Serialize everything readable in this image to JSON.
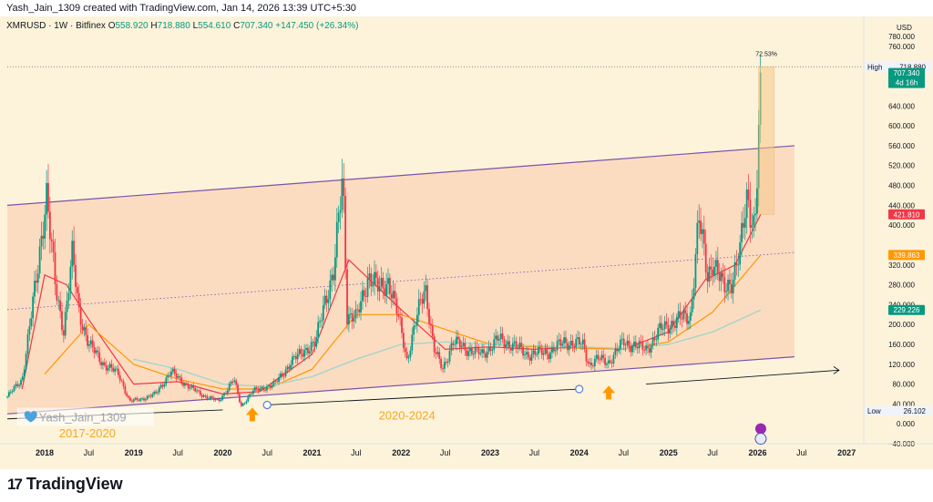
{
  "header": {
    "credit": "Yash_Jain_1309 created with TradingView.com, Jan 14, 2026 13:39 UTC+5:30"
  },
  "legend": {
    "symbol": "XMRUSD · 1W · Bitfinex",
    "open_label": "O",
    "open": "558.920",
    "high_label": "H",
    "high": "718.880",
    "low_label": "L",
    "low": "554.610",
    "close_label": "C",
    "close": "707.340",
    "change": "+147.450 (+26.34%)"
  },
  "footer": {
    "brand": "TradingView",
    "logo_mark": "17"
  },
  "chart_data": {
    "type": "candlestick",
    "currency": "USD",
    "y_range": [
      -40,
      780
    ],
    "x_range": [
      "2017-08-01",
      "2027-03-01"
    ],
    "y_ticks": [
      "780.000",
      "760.000",
      "640.000",
      "600.000",
      "560.000",
      "520.000",
      "480.000",
      "440.000",
      "400.000",
      "320.000",
      "280.000",
      "240.000",
      "200.000",
      "160.000",
      "120.000",
      "80.000",
      "40.000",
      "0.000",
      "−40.000"
    ],
    "y_tick_values": [
      780,
      760,
      640,
      600,
      560,
      520,
      480,
      440,
      400,
      320,
      280,
      240,
      200,
      160,
      120,
      80,
      40,
      0,
      -40
    ],
    "x_ticks": [
      {
        "label": "2018",
        "date": "2018-01-01",
        "bold": true
      },
      {
        "label": "Jul",
        "date": "2018-07-01"
      },
      {
        "label": "2019",
        "date": "2019-01-01",
        "bold": true
      },
      {
        "label": "Jul",
        "date": "2019-07-01"
      },
      {
        "label": "2020",
        "date": "2020-01-01",
        "bold": true
      },
      {
        "label": "Jul",
        "date": "2020-07-01"
      },
      {
        "label": "2021",
        "date": "2021-01-01",
        "bold": true
      },
      {
        "label": "Jul",
        "date": "2021-07-01"
      },
      {
        "label": "2022",
        "date": "2022-01-01",
        "bold": true
      },
      {
        "label": "Jul",
        "date": "2022-07-01"
      },
      {
        "label": "2023",
        "date": "2023-01-01",
        "bold": true
      },
      {
        "label": "Jul",
        "date": "2023-07-01"
      },
      {
        "label": "2024",
        "date": "2024-01-01",
        "bold": true
      },
      {
        "label": "Jul",
        "date": "2024-07-01"
      },
      {
        "label": "2025",
        "date": "2025-01-01",
        "bold": true
      },
      {
        "label": "Jul",
        "date": "2025-07-01"
      },
      {
        "label": "2026",
        "date": "2026-01-01",
        "bold": true
      },
      {
        "label": "Jul",
        "date": "2026-07-01"
      },
      {
        "label": "2027",
        "date": "2027-01-01",
        "bold": true
      }
    ],
    "price_path": [
      [
        "2017-08-01",
        55
      ],
      [
        "2017-10-01",
        90
      ],
      [
        "2017-12-01",
        300
      ],
      [
        "2018-01-08",
        470
      ],
      [
        "2018-01-20",
        400
      ],
      [
        "2018-02-15",
        270
      ],
      [
        "2018-03-20",
        190
      ],
      [
        "2018-04-25",
        340
      ],
      [
        "2018-05-20",
        230
      ],
      [
        "2018-07-01",
        160
      ],
      [
        "2018-09-01",
        120
      ],
      [
        "2018-11-01",
        100
      ],
      [
        "2018-12-15",
        45
      ],
      [
        "2019-02-01",
        50
      ],
      [
        "2019-04-01",
        60
      ],
      [
        "2019-06-01",
        105
      ],
      [
        "2019-08-01",
        80
      ],
      [
        "2019-10-01",
        60
      ],
      [
        "2019-12-15",
        45
      ],
      [
        "2020-02-15",
        90
      ],
      [
        "2020-03-16",
        35
      ],
      [
        "2020-05-01",
        65
      ],
      [
        "2020-08-01",
        80
      ],
      [
        "2020-10-01",
        120
      ],
      [
        "2020-12-01",
        150
      ],
      [
        "2021-01-15",
        160
      ],
      [
        "2021-02-20",
        250
      ],
      [
        "2021-04-01",
        300
      ],
      [
        "2021-05-07",
        510
      ],
      [
        "2021-05-25",
        220
      ],
      [
        "2021-07-01",
        210
      ],
      [
        "2021-08-20",
        300
      ],
      [
        "2021-10-01",
        270
      ],
      [
        "2021-11-10",
        290
      ],
      [
        "2022-01-01",
        190
      ],
      [
        "2022-01-25",
        130
      ],
      [
        "2022-03-20",
        240
      ],
      [
        "2022-04-10",
        280
      ],
      [
        "2022-05-15",
        150
      ],
      [
        "2022-06-20",
        110
      ],
      [
        "2022-08-01",
        165
      ],
      [
        "2022-10-01",
        150
      ],
      [
        "2022-12-01",
        140
      ],
      [
        "2023-02-01",
        170
      ],
      [
        "2023-04-01",
        160
      ],
      [
        "2023-06-01",
        140
      ],
      [
        "2023-09-01",
        145
      ],
      [
        "2023-11-01",
        165
      ],
      [
        "2024-01-15",
        160
      ],
      [
        "2024-02-10",
        120
      ],
      [
        "2024-03-15",
        130
      ],
      [
        "2024-05-01",
        125
      ],
      [
        "2024-07-01",
        165
      ],
      [
        "2024-10-01",
        150
      ],
      [
        "2024-12-01",
        190
      ],
      [
        "2025-01-01",
        200
      ],
      [
        "2025-04-01",
        220
      ],
      [
        "2025-05-05",
        410
      ],
      [
        "2025-06-10",
        300
      ],
      [
        "2025-07-01",
        330
      ],
      [
        "2025-08-15",
        270
      ],
      [
        "2025-09-15",
        290
      ],
      [
        "2025-10-20",
        340
      ],
      [
        "2025-11-20",
        460
      ],
      [
        "2025-12-20",
        400
      ],
      [
        "2026-01-05",
        560
      ],
      [
        "2026-01-14",
        707.34
      ]
    ],
    "ma_fast": [
      [
        "2017-10-01",
        70
      ],
      [
        "2018-01-01",
        300
      ],
      [
        "2018-04-01",
        280
      ],
      [
        "2018-07-01",
        210
      ],
      [
        "2019-01-01",
        80
      ],
      [
        "2019-07-01",
        85
      ],
      [
        "2020-01-01",
        60
      ],
      [
        "2020-06-01",
        65
      ],
      [
        "2021-01-01",
        140
      ],
      [
        "2021-06-01",
        330
      ],
      [
        "2022-01-01",
        230
      ],
      [
        "2022-07-01",
        150
      ],
      [
        "2023-01-01",
        155
      ],
      [
        "2023-07-01",
        150
      ],
      [
        "2024-01-01",
        155
      ],
      [
        "2024-07-01",
        150
      ],
      [
        "2025-01-01",
        185
      ],
      [
        "2025-06-01",
        290
      ],
      [
        "2025-10-01",
        320
      ],
      [
        "2026-01-14",
        421.81
      ]
    ],
    "ma_mid": [
      [
        "2018-01-01",
        100
      ],
      [
        "2018-07-01",
        200
      ],
      [
        "2019-01-01",
        120
      ],
      [
        "2019-07-01",
        90
      ],
      [
        "2020-01-01",
        70
      ],
      [
        "2020-07-01",
        70
      ],
      [
        "2021-01-01",
        110
      ],
      [
        "2021-07-01",
        220
      ],
      [
        "2022-01-01",
        220
      ],
      [
        "2022-07-01",
        190
      ],
      [
        "2023-01-01",
        160
      ],
      [
        "2023-07-01",
        155
      ],
      [
        "2024-01-01",
        152
      ],
      [
        "2024-07-01",
        150
      ],
      [
        "2025-01-01",
        165
      ],
      [
        "2025-07-01",
        225
      ],
      [
        "2026-01-14",
        339.863
      ]
    ],
    "ma_slow": [
      [
        "2019-01-01",
        130
      ],
      [
        "2019-07-01",
        110
      ],
      [
        "2020-01-01",
        80
      ],
      [
        "2020-07-01",
        75
      ],
      [
        "2021-01-01",
        95
      ],
      [
        "2021-07-01",
        130
      ],
      [
        "2022-01-01",
        160
      ],
      [
        "2022-07-01",
        165
      ],
      [
        "2023-01-01",
        160
      ],
      [
        "2023-07-01",
        157
      ],
      [
        "2024-01-01",
        155
      ],
      [
        "2024-07-01",
        152
      ],
      [
        "2025-01-01",
        160
      ],
      [
        "2025-07-01",
        185
      ],
      [
        "2026-01-14",
        229.226
      ]
    ],
    "channel": {
      "upper": [
        [
          "2017-08-01",
          440
        ],
        [
          "2026-06-01",
          560
        ]
      ],
      "lower": [
        [
          "2017-08-01",
          20
        ],
        [
          "2026-06-01",
          135
        ]
      ],
      "middle": [
        [
          "2017-08-01",
          230
        ],
        [
          "2026-06-01",
          345
        ]
      ]
    },
    "projection_box": {
      "from": "2026-01-05",
      "to": "2026-03-10",
      "low": 421.81,
      "high": 718.88,
      "label": "72.53%"
    },
    "support_lines": [
      {
        "from": [
          "2017-08-01",
          10
        ],
        "to": [
          "2020-01-01",
          28
        ]
      },
      {
        "from": [
          "2020-07-01",
          38
        ],
        "to": [
          "2024-01-01",
          70
        ],
        "markers": true
      },
      {
        "from": [
          "2024-10-01",
          80
        ],
        "to": [
          "2026-12-01",
          108
        ],
        "arrow": true
      }
    ],
    "buy_arrows": [
      [
        "2020-05-01",
        18
      ],
      [
        "2024-05-01",
        62
      ]
    ],
    "annotations": [
      {
        "text": "Yash_Jain_1309",
        "date": "2017-10-10",
        "price": 14,
        "kind": "watermark"
      },
      {
        "text": "2017-2020",
        "date": "2018-03-01",
        "price": -18,
        "kind": "period"
      },
      {
        "text": "2020-2024",
        "date": "2021-10-01",
        "price": 18,
        "kind": "period"
      }
    ],
    "price_labels": [
      {
        "text": "High",
        "value": "718.880",
        "price": 718.88,
        "kind": "high"
      },
      {
        "text": "",
        "value": "707.340",
        "price": 707.34,
        "sub": "4d 16h",
        "kind": "last"
      },
      {
        "text": "",
        "value": "421.810",
        "price": 421.81,
        "kind": "red"
      },
      {
        "text": "",
        "value": "339.863",
        "price": 339.863,
        "kind": "orange"
      },
      {
        "text": "",
        "value": "229.226",
        "price": 229.226,
        "kind": "teal"
      },
      {
        "text": "Low",
        "value": "26.102",
        "price": 26.102,
        "kind": "low"
      }
    ],
    "colors": {
      "up": "#089981",
      "down": "#f23645",
      "channel_fill": "#fad4b8",
      "channel_line": "#7b52ab",
      "ma_fast": "#f23645",
      "ma_mid": "#ff9800",
      "ma_slow": "#a5d6c9",
      "box": "#f7c98a",
      "arrow": "#ff9800",
      "period_text": "#f5a623"
    }
  }
}
